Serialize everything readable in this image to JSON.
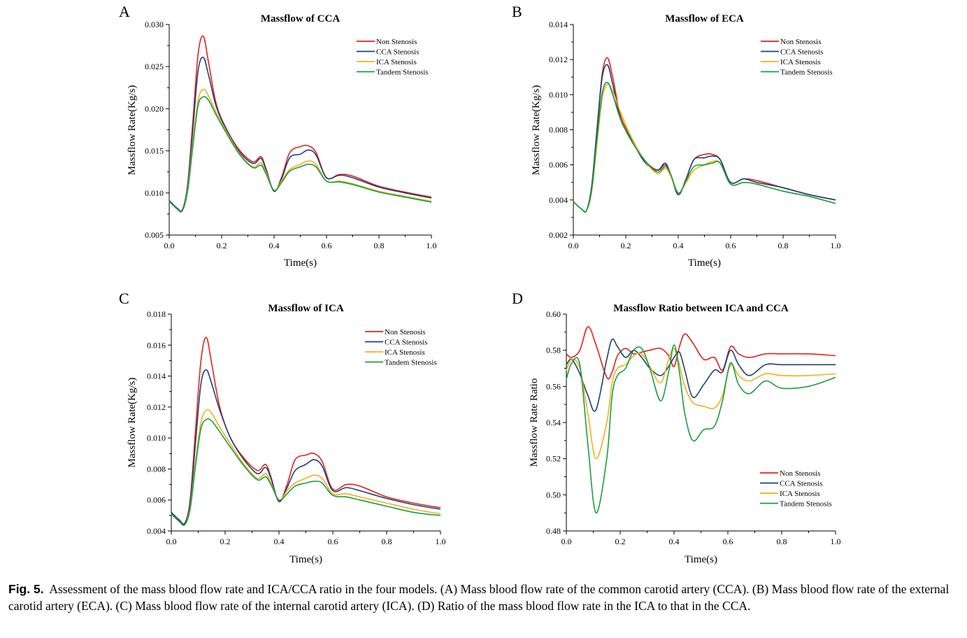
{
  "caption": {
    "label": "Fig. 5.",
    "text": "Assessment of the mass blood flow rate and ICA/CCA ratio in the four models. (A) Mass blood flow rate of the common carotid artery (CCA). (B) Mass blood flow rate of the external carotid artery (ECA). (C) Mass blood flow rate of the internal carotid artery (ICA). (D) Ratio of the mass blood flow rate in the ICA to that in the CCA."
  },
  "series_colors": {
    "Non Stenosis": "#e2231a",
    "CCA Stenosis": "#1f3f7a",
    "ICA Stenosis": "#f2b01e",
    "Tandem Stenosis": "#1a9e3e"
  },
  "chart_data": [
    {
      "panel": "A",
      "type": "line",
      "title": "Massflow of CCA",
      "xlabel": "Time(s)",
      "ylabel": "Massflow Rate(Kg/s)",
      "xlim": [
        0,
        1.0
      ],
      "ylim": [
        0.005,
        0.03
      ],
      "xticks": [
        "0.0",
        "0.2",
        "0.4",
        "0.6",
        "0.8",
        "1.0"
      ],
      "yticks": [
        "0.005",
        "0.010",
        "0.015",
        "0.020",
        "0.025",
        "0.030"
      ],
      "legend": "top-right",
      "grid": false,
      "x": [
        0.0,
        0.03,
        0.05,
        0.07,
        0.09,
        0.11,
        0.13,
        0.15,
        0.18,
        0.22,
        0.27,
        0.32,
        0.35,
        0.37,
        0.4,
        0.43,
        0.46,
        0.5,
        0.53,
        0.56,
        0.6,
        0.65,
        0.7,
        0.8,
        0.9,
        1.0
      ],
      "series": [
        {
          "name": "Non Stenosis",
          "values": [
            0.0091,
            0.0082,
            0.008,
            0.011,
            0.0185,
            0.0265,
            0.0286,
            0.0255,
            0.0205,
            0.0175,
            0.015,
            0.0137,
            0.0143,
            0.0128,
            0.0102,
            0.012,
            0.0148,
            0.0155,
            0.0156,
            0.0148,
            0.0118,
            0.0122,
            0.012,
            0.0108,
            0.0101,
            0.0095
          ]
        },
        {
          "name": "CCA Stenosis",
          "values": [
            0.0091,
            0.0082,
            0.008,
            0.0108,
            0.0175,
            0.0245,
            0.0261,
            0.024,
            0.0202,
            0.0174,
            0.0148,
            0.0135,
            0.0141,
            0.0127,
            0.0102,
            0.0118,
            0.0142,
            0.0146,
            0.0151,
            0.0145,
            0.0118,
            0.0121,
            0.0118,
            0.0107,
            0.01,
            0.0094
          ]
        },
        {
          "name": "ICA Stenosis",
          "values": [
            0.009,
            0.0081,
            0.0079,
            0.0104,
            0.016,
            0.021,
            0.0223,
            0.0215,
            0.0195,
            0.0172,
            0.0146,
            0.0131,
            0.0136,
            0.0124,
            0.0103,
            0.0115,
            0.0128,
            0.0134,
            0.0138,
            0.0134,
            0.0114,
            0.0114,
            0.0111,
            0.0102,
            0.0096,
            0.009
          ]
        },
        {
          "name": "Tandem Stenosis",
          "values": [
            0.009,
            0.0081,
            0.0079,
            0.0102,
            0.0155,
            0.0204,
            0.0214,
            0.021,
            0.0192,
            0.017,
            0.0145,
            0.013,
            0.0133,
            0.0122,
            0.0103,
            0.0113,
            0.0126,
            0.0131,
            0.0134,
            0.0131,
            0.0114,
            0.0113,
            0.011,
            0.0101,
            0.0095,
            0.0089
          ]
        }
      ]
    },
    {
      "panel": "B",
      "type": "line",
      "title": "Massflow of ECA",
      "xlabel": "Time(s)",
      "ylabel": "Massflow Rate(Kg/s)",
      "xlim": [
        0,
        1.0
      ],
      "ylim": [
        0.002,
        0.014
      ],
      "xticks": [
        "0.0",
        "0.2",
        "0.4",
        "0.6",
        "0.8",
        "1.0"
      ],
      "yticks": [
        "0.002",
        "0.004",
        "0.006",
        "0.008",
        "0.010",
        "0.012",
        "0.014"
      ],
      "legend": "top-right",
      "grid": false,
      "x": [
        0.0,
        0.03,
        0.05,
        0.07,
        0.09,
        0.11,
        0.13,
        0.15,
        0.18,
        0.22,
        0.27,
        0.32,
        0.35,
        0.37,
        0.4,
        0.43,
        0.46,
        0.5,
        0.53,
        0.56,
        0.6,
        0.65,
        0.7,
        0.8,
        0.9,
        1.0
      ],
      "series": [
        {
          "name": "Non Stenosis",
          "values": [
            0.0039,
            0.0035,
            0.0034,
            0.0048,
            0.008,
            0.0112,
            0.0121,
            0.011,
            0.0088,
            0.0076,
            0.0063,
            0.0057,
            0.006,
            0.0055,
            0.0043,
            0.0052,
            0.0063,
            0.0066,
            0.0066,
            0.0063,
            0.005,
            0.0052,
            0.0051,
            0.0047,
            0.0043,
            0.004
          ]
        },
        {
          "name": "CCA Stenosis",
          "values": [
            0.0039,
            0.0035,
            0.0034,
            0.0048,
            0.008,
            0.011,
            0.0117,
            0.0106,
            0.0086,
            0.0075,
            0.0062,
            0.0057,
            0.0061,
            0.0055,
            0.0043,
            0.0052,
            0.0063,
            0.0064,
            0.0065,
            0.0063,
            0.005,
            0.0052,
            0.005,
            0.0047,
            0.0043,
            0.004
          ]
        },
        {
          "name": "ICA Stenosis",
          "values": [
            0.0039,
            0.0035,
            0.0034,
            0.0045,
            0.0072,
            0.0098,
            0.0106,
            0.0102,
            0.009,
            0.0076,
            0.0063,
            0.0055,
            0.0058,
            0.0054,
            0.0044,
            0.005,
            0.0057,
            0.006,
            0.0062,
            0.0061,
            0.0049,
            0.005,
            0.0049,
            0.0045,
            0.0042,
            0.0038
          ]
        },
        {
          "name": "Tandem Stenosis",
          "values": [
            0.0039,
            0.0035,
            0.0034,
            0.0046,
            0.0075,
            0.0101,
            0.0107,
            0.01,
            0.0086,
            0.0074,
            0.0063,
            0.0056,
            0.0059,
            0.0055,
            0.0044,
            0.0051,
            0.0059,
            0.006,
            0.0061,
            0.0061,
            0.0049,
            0.005,
            0.0049,
            0.0045,
            0.0042,
            0.0038
          ]
        }
      ]
    },
    {
      "panel": "C",
      "type": "line",
      "title": "Massflow of ICA",
      "xlabel": "Time(s)",
      "ylabel": "Massflow Rate(Kg/s)",
      "xlim": [
        0,
        1.0
      ],
      "ylim": [
        0.004,
        0.018
      ],
      "xticks": [
        "0.0",
        "0.2",
        "0.4",
        "0.6",
        "0.8",
        "1.0"
      ],
      "yticks": [
        "0.004",
        "0.006",
        "0.008",
        "0.010",
        "0.012",
        "0.014",
        "0.016",
        "0.018"
      ],
      "legend": "top-right",
      "grid": false,
      "x": [
        0.0,
        0.03,
        0.05,
        0.07,
        0.09,
        0.11,
        0.13,
        0.15,
        0.18,
        0.22,
        0.27,
        0.32,
        0.35,
        0.37,
        0.4,
        0.43,
        0.46,
        0.5,
        0.53,
        0.56,
        0.6,
        0.65,
        0.7,
        0.8,
        0.9,
        1.0
      ],
      "series": [
        {
          "name": "Non Stenosis",
          "values": [
            0.0052,
            0.0047,
            0.0045,
            0.006,
            0.0105,
            0.015,
            0.0165,
            0.0148,
            0.012,
            0.01,
            0.0087,
            0.0079,
            0.0083,
            0.0075,
            0.0059,
            0.007,
            0.0086,
            0.0089,
            0.009,
            0.0085,
            0.0067,
            0.007,
            0.0069,
            0.0062,
            0.0058,
            0.0055
          ]
        },
        {
          "name": "CCA Stenosis",
          "values": [
            0.0052,
            0.0047,
            0.0045,
            0.0058,
            0.0097,
            0.0135,
            0.0144,
            0.0135,
            0.0118,
            0.01,
            0.0086,
            0.0077,
            0.0081,
            0.0074,
            0.0059,
            0.0068,
            0.0079,
            0.0083,
            0.0086,
            0.0082,
            0.0066,
            0.0068,
            0.0066,
            0.0061,
            0.0057,
            0.0054
          ]
        },
        {
          "name": "ICA Stenosis",
          "values": [
            0.0051,
            0.0046,
            0.0044,
            0.0055,
            0.0085,
            0.011,
            0.0118,
            0.0116,
            0.0107,
            0.0096,
            0.0083,
            0.0074,
            0.0077,
            0.0071,
            0.006,
            0.0066,
            0.0071,
            0.0074,
            0.0076,
            0.0074,
            0.0064,
            0.0064,
            0.0062,
            0.0058,
            0.0054,
            0.0051
          ]
        },
        {
          "name": "Tandem Stenosis",
          "values": [
            0.0051,
            0.0046,
            0.0044,
            0.0054,
            0.0082,
            0.0106,
            0.0112,
            0.0111,
            0.0104,
            0.0094,
            0.0082,
            0.0073,
            0.0075,
            0.007,
            0.006,
            0.0064,
            0.0069,
            0.0071,
            0.0072,
            0.0071,
            0.0063,
            0.0062,
            0.006,
            0.0056,
            0.0052,
            0.005
          ]
        }
      ]
    },
    {
      "panel": "D",
      "type": "line",
      "title": "Massflow Ratio between ICA and CCA",
      "xlabel": "Time(s)",
      "ylabel": "Massflow Rate Ratio",
      "xlim": [
        0,
        1.0
      ],
      "ylim": [
        0.48,
        0.6
      ],
      "xticks": [
        "0.0",
        "0.2",
        "0.4",
        "0.6",
        "0.8",
        "1.0"
      ],
      "yticks": [
        "0.48",
        "0.50",
        "0.52",
        "0.54",
        "0.56",
        "0.58",
        "0.60"
      ],
      "legend": "bottom-right",
      "grid": false,
      "x": [
        0.0,
        0.02,
        0.05,
        0.08,
        0.11,
        0.15,
        0.17,
        0.19,
        0.22,
        0.25,
        0.28,
        0.31,
        0.35,
        0.38,
        0.4,
        0.42,
        0.44,
        0.47,
        0.51,
        0.55,
        0.58,
        0.61,
        0.64,
        0.68,
        0.74,
        0.8,
        0.9,
        1.0
      ],
      "series": [
        {
          "name": "Non Stenosis",
          "values": [
            0.578,
            0.576,
            0.58,
            0.593,
            0.583,
            0.565,
            0.568,
            0.577,
            0.581,
            0.578,
            0.579,
            0.58,
            0.581,
            0.577,
            0.571,
            0.582,
            0.589,
            0.584,
            0.575,
            0.576,
            0.569,
            0.582,
            0.578,
            0.576,
            0.578,
            0.578,
            0.578,
            0.577
          ]
        },
        {
          "name": "CCA Stenosis",
          "values": [
            0.572,
            0.575,
            0.567,
            0.555,
            0.547,
            0.575,
            0.586,
            0.582,
            0.576,
            0.58,
            0.576,
            0.57,
            0.566,
            0.571,
            0.576,
            0.579,
            0.569,
            0.554,
            0.561,
            0.569,
            0.568,
            0.58,
            0.572,
            0.566,
            0.572,
            0.572,
            0.572,
            0.572
          ]
        },
        {
          "name": "ICA Stenosis",
          "values": [
            0.569,
            0.575,
            0.57,
            0.545,
            0.52,
            0.54,
            0.562,
            0.57,
            0.572,
            0.577,
            0.578,
            0.571,
            0.562,
            0.575,
            0.581,
            0.572,
            0.56,
            0.551,
            0.549,
            0.548,
            0.555,
            0.572,
            0.566,
            0.563,
            0.567,
            0.566,
            0.566,
            0.567
          ]
        },
        {
          "name": "Tandem Stenosis",
          "values": [
            0.564,
            0.573,
            0.572,
            0.528,
            0.49,
            0.52,
            0.555,
            0.566,
            0.57,
            0.58,
            0.581,
            0.57,
            0.552,
            0.568,
            0.583,
            0.568,
            0.545,
            0.53,
            0.536,
            0.538,
            0.552,
            0.573,
            0.561,
            0.556,
            0.563,
            0.559,
            0.56,
            0.565
          ]
        }
      ]
    }
  ]
}
